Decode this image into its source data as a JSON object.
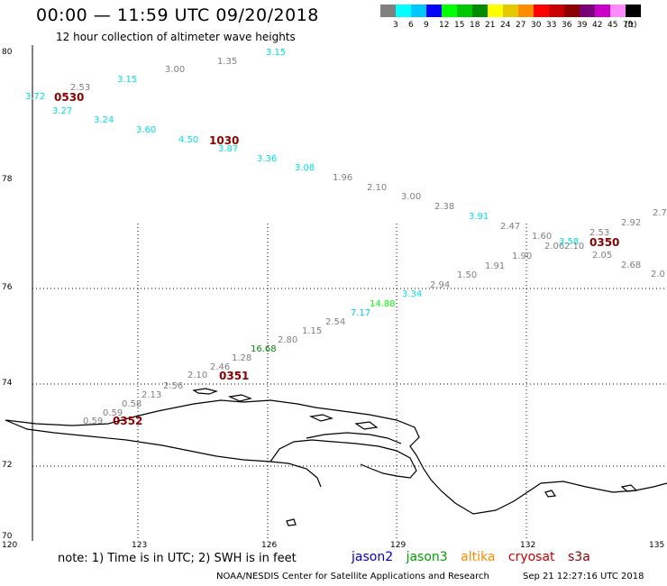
{
  "header": {
    "title": "00:00 — 11:59 UTC 09/20/2018",
    "subtitle": "12 hour collection of altimeter wave heights"
  },
  "colorbar": {
    "unit": "(ft)",
    "bins": [
      {
        "label": "3",
        "color": "#808080"
      },
      {
        "label": "6",
        "color": "#00ffff"
      },
      {
        "label": "9",
        "color": "#00c8ff"
      },
      {
        "label": "12",
        "color": "#0000ff"
      },
      {
        "label": "15",
        "color": "#00ff00"
      },
      {
        "label": "18",
        "color": "#00c800"
      },
      {
        "label": "21",
        "color": "#008c00"
      },
      {
        "label": "24",
        "color": "#ffff00"
      },
      {
        "label": "27",
        "color": "#e6c800"
      },
      {
        "label": "30",
        "color": "#ff8c00"
      },
      {
        "label": "33",
        "color": "#ff0000"
      },
      {
        "label": "36",
        "color": "#c80000"
      },
      {
        "label": "39",
        "color": "#8c0000"
      },
      {
        "label": "42",
        "color": "#780078"
      },
      {
        "label": "45",
        "color": "#c800c8"
      },
      {
        "label": "70",
        "color": "#ff8cff"
      },
      {
        "label": "",
        "color": "#000000"
      }
    ]
  },
  "map": {
    "lat_labels": [
      "80",
      "78",
      "76",
      "74",
      "72",
      "70"
    ],
    "lon_labels": [
      "120",
      "123",
      "126",
      "129",
      "132",
      "135"
    ],
    "times": [
      "0530",
      "1030",
      "0350",
      "0351",
      "0352"
    ],
    "measurements": [
      {
        "v": "3.72",
        "c": "#00e0e0"
      },
      {
        "v": "2.53",
        "c": "#808080"
      },
      {
        "v": "3.27",
        "c": "#00e0e0"
      },
      {
        "v": "3.15",
        "c": "#00e0e0"
      },
      {
        "v": "3.00",
        "c": "#808080"
      },
      {
        "v": "1.35",
        "c": "#808080"
      },
      {
        "v": "3.15",
        "c": "#00e0e0"
      },
      {
        "v": "3.24",
        "c": "#00e0e0"
      },
      {
        "v": "3.60",
        "c": "#00e0e0"
      },
      {
        "v": "4.50",
        "c": "#00e0e0"
      },
      {
        "v": "3.87",
        "c": "#00e0e0"
      },
      {
        "v": "3.36",
        "c": "#00e0e0"
      },
      {
        "v": "3.08",
        "c": "#00e0e0"
      },
      {
        "v": "1.96",
        "c": "#808080"
      },
      {
        "v": "2.10",
        "c": "#808080"
      },
      {
        "v": "3.00",
        "c": "#808080"
      },
      {
        "v": "2.38",
        "c": "#808080"
      },
      {
        "v": "3.91",
        "c": "#00e0e0"
      },
      {
        "v": "2.47",
        "c": "#808080"
      },
      {
        "v": "1.60",
        "c": "#808080"
      },
      {
        "v": "2.06",
        "c": "#808080"
      },
      {
        "v": "3.58",
        "c": "#00e0e0"
      },
      {
        "v": "2.10",
        "c": "#808080"
      },
      {
        "v": "2.53",
        "c": "#808080"
      },
      {
        "v": "2.92",
        "c": "#808080"
      },
      {
        "v": "2.7",
        "c": "#808080"
      },
      {
        "v": "1.90",
        "c": "#808080"
      },
      {
        "v": "2.05",
        "c": "#808080"
      },
      {
        "v": "2.68",
        "c": "#808080"
      },
      {
        "v": "2.0",
        "c": "#808080"
      },
      {
        "v": "1.91",
        "c": "#808080"
      },
      {
        "v": "1.50",
        "c": "#808080"
      },
      {
        "v": "2.94",
        "c": "#808080"
      },
      {
        "v": "3.34",
        "c": "#00e0e0"
      },
      {
        "v": "14.88",
        "c": "#00ff00"
      },
      {
        "v": "7.17",
        "c": "#00c8ff"
      },
      {
        "v": "2.54",
        "c": "#808080"
      },
      {
        "v": "1.15",
        "c": "#808080"
      },
      {
        "v": "2.80",
        "c": "#808080"
      },
      {
        "v": "16.68",
        "c": "#008c00"
      },
      {
        "v": "1.28",
        "c": "#808080"
      },
      {
        "v": "2.46",
        "c": "#808080"
      },
      {
        "v": "2.10",
        "c": "#808080"
      },
      {
        "v": "2.56",
        "c": "#808080"
      },
      {
        "v": "2.13",
        "c": "#808080"
      },
      {
        "v": "0.58",
        "c": "#808080"
      },
      {
        "v": "0.59",
        "c": "#808080"
      },
      {
        "v": "0.59",
        "c": "#808080"
      }
    ]
  },
  "footer": {
    "note": "note: 1) Time is in UTC; 2) SWH is in feet",
    "satellites": [
      {
        "name": "jason2",
        "color": "#0000cc"
      },
      {
        "name": "jason3",
        "color": "#00a000"
      },
      {
        "name": "altika",
        "color": "#ff8c00"
      },
      {
        "name": "cryosat",
        "color": "#cc0000"
      },
      {
        "name": "s3a",
        "color": "#8b0000"
      }
    ],
    "credit": "NOAA/NESDIS Center for Satellite Applications and Research",
    "timestamp": "Sep 21 12:27:16 UTC 2018"
  }
}
